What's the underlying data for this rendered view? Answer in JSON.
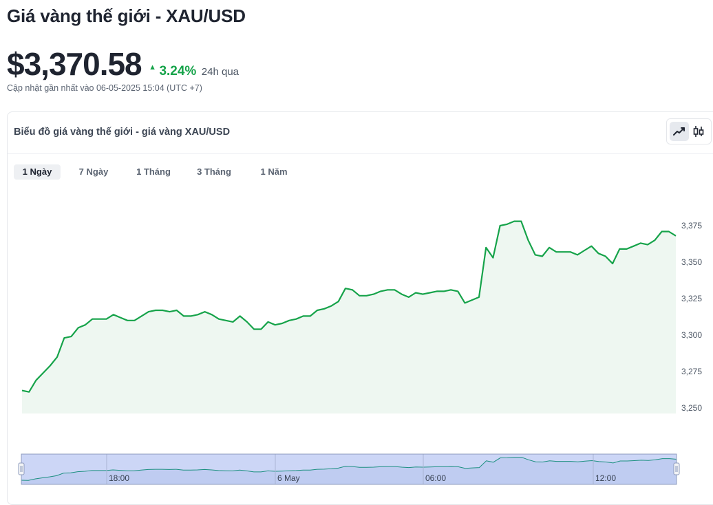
{
  "header": {
    "title": "Giá vàng thế giới - XAU/USD",
    "price": "$3,370.58",
    "change_pct": "3.24%",
    "change_period": "24h qua",
    "updated": "Cập nhật gần nhất vào 06-05-2025 15:04 (UTC +7)"
  },
  "card": {
    "title": "Biểu đồ giá vàng thế giới - giá vàng XAU/USD",
    "chart_types": [
      {
        "name": "line-chart-icon",
        "active": true
      },
      {
        "name": "candlestick-icon",
        "active": false
      }
    ],
    "tabs": [
      {
        "label": "1 Ngày",
        "active": true
      },
      {
        "label": "7 Ngày",
        "active": false
      },
      {
        "label": "1 Tháng",
        "active": false
      },
      {
        "label": "3 Tháng",
        "active": false
      },
      {
        "label": "1 Năm",
        "active": false
      }
    ]
  },
  "colors": {
    "line": "#16a34a",
    "area_fill": "#eef7f1",
    "positive": "#16a34a",
    "navigator_fill": "#ccd6f6",
    "navigator_border": "#8e9bbd"
  },
  "chart_data": {
    "type": "area",
    "ylim": [
      3245,
      3385
    ],
    "yticks": [
      "3,250",
      "3,275",
      "3,300",
      "3,325",
      "3,350",
      "3,375"
    ],
    "ytick_values": [
      3250,
      3275,
      3300,
      3325,
      3350,
      3375
    ],
    "y_axis_position": "right",
    "grid": false,
    "values": [
      3262,
      3261,
      3269,
      3274,
      3279,
      3285,
      3298,
      3299,
      3305,
      3307,
      3311,
      3311,
      3311,
      3314,
      3312,
      3310,
      3310,
      3313,
      3316,
      3317,
      3317,
      3316,
      3317,
      3313,
      3313,
      3314,
      3316,
      3314,
      3311,
      3310,
      3309,
      3313,
      3309,
      3304,
      3304,
      3309,
      3307,
      3308,
      3310,
      3311,
      3313,
      3313,
      3317,
      3318,
      3320,
      3323,
      3332,
      3331,
      3327,
      3327,
      3328,
      3330,
      3331,
      3331,
      3328,
      3326,
      3329,
      3328,
      3329,
      3330,
      3330,
      3331,
      3330,
      3322,
      3324,
      3326,
      3360,
      3353,
      3375,
      3376,
      3378,
      3378,
      3365,
      3355,
      3354,
      3360,
      3357,
      3357,
      3357,
      3355,
      3358,
      3361,
      3356,
      3354,
      3349,
      3359,
      3359,
      3361,
      3363,
      3362,
      3365,
      3371,
      3371,
      3368
    ],
    "navigator": {
      "labels": [
        "18:00",
        "6 May",
        "06:00",
        "12:00"
      ]
    }
  }
}
